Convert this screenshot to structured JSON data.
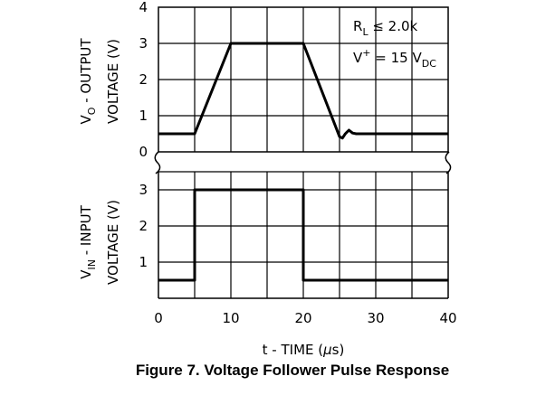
{
  "caption": "Figure 7. Voltage Follower Pulse Response",
  "chart_data": [
    {
      "type": "line",
      "name": "output",
      "ylabel_line1": "V",
      "ylabel_sub": "O",
      "ylabel_rest": " - OUTPUT",
      "ylabel_line2": "VOLTAGE (V)",
      "ylim": [
        0,
        4
      ],
      "yticks": [
        0,
        1,
        2,
        3,
        4
      ],
      "xlim": [
        0,
        40
      ],
      "x": [
        0,
        5,
        10,
        20,
        25,
        25.4,
        25.8,
        26.3,
        26.8,
        27.3,
        40
      ],
      "y": [
        0.5,
        0.5,
        3.0,
        3.0,
        0.42,
        0.38,
        0.5,
        0.6,
        0.52,
        0.5,
        0.5
      ],
      "annotation": {
        "rl_main": "R",
        "rl_sub": "L",
        "rl_rest": " ≤ 2.0k",
        "vp_main": "V",
        "vp_sup": "+",
        "vp_rest": " = 15 V",
        "vp_sub": "DC"
      }
    },
    {
      "type": "line",
      "name": "input",
      "ylabel_line1": "V",
      "ylabel_sub": "IN",
      "ylabel_rest": " - INPUT",
      "ylabel_line2": "VOLTAGE (V)",
      "ylim": [
        0,
        3
      ],
      "yticks": [
        1,
        2,
        3
      ],
      "xlim": [
        0,
        40
      ],
      "x": [
        0,
        5,
        5,
        20,
        20,
        40
      ],
      "y": [
        0.5,
        0.5,
        3.0,
        3.0,
        0.5,
        0.5
      ]
    }
  ],
  "xaxis": {
    "ticks": [
      0,
      10,
      20,
      30,
      40
    ],
    "label_pre": "t - TIME (",
    "label_mu": "μ",
    "label_post": "s)"
  }
}
